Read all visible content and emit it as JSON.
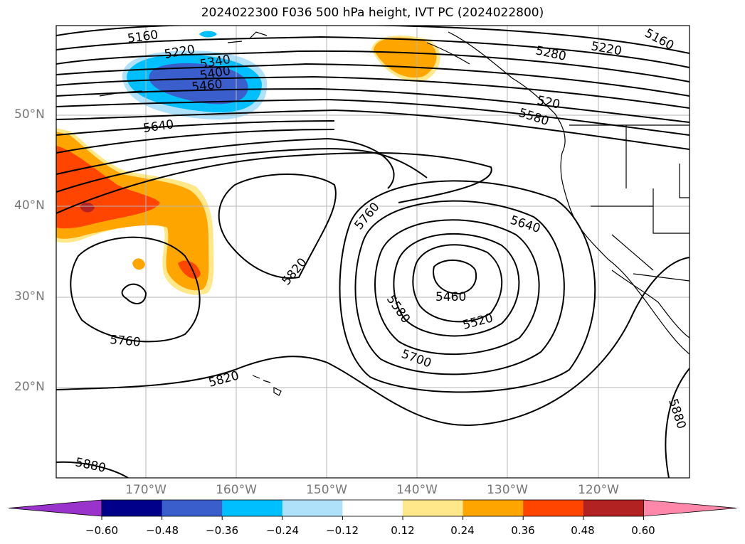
{
  "title": "2024022300 F036 500 hPa height, IVT PC (2024022800)",
  "map": {
    "lat_labels": [
      {
        "id": "lat50",
        "value": 50,
        "text": "50°N"
      },
      {
        "id": "lat40",
        "value": 40,
        "text": "40°N"
      },
      {
        "id": "lat30",
        "value": 30,
        "text": "30°N"
      },
      {
        "id": "lat20",
        "value": 20,
        "text": "20°N"
      }
    ],
    "lon_labels": [
      {
        "id": "lon170",
        "value": -170,
        "text": "170°W"
      },
      {
        "id": "lon160",
        "value": -160,
        "text": "160°W"
      },
      {
        "id": "lon150",
        "value": -150,
        "text": "150°W"
      },
      {
        "id": "lon140",
        "value": -140,
        "text": "140°W"
      },
      {
        "id": "lon130",
        "value": -130,
        "text": "130°W"
      },
      {
        "id": "lon120",
        "value": -120,
        "text": "120°W"
      }
    ],
    "contour_labels": [
      {
        "id": "c1",
        "text": "5160"
      },
      {
        "id": "c2",
        "text": "5220"
      },
      {
        "id": "c3",
        "text": "5340"
      },
      {
        "id": "c4",
        "text": "5400"
      },
      {
        "id": "c5",
        "text": "5460"
      },
      {
        "id": "c6",
        "text": "5640"
      },
      {
        "id": "c7",
        "text": "5280"
      },
      {
        "id": "c8",
        "text": "5220"
      },
      {
        "id": "c9",
        "text": "5160"
      },
      {
        "id": "c10",
        "text": "520"
      },
      {
        "id": "c11",
        "text": "5580"
      },
      {
        "id": "c12",
        "text": "5760"
      },
      {
        "id": "c13",
        "text": "5640"
      },
      {
        "id": "c14",
        "text": "5820"
      },
      {
        "id": "c15",
        "text": "5460"
      },
      {
        "id": "c16",
        "text": "5580"
      },
      {
        "id": "c17",
        "text": "5520"
      },
      {
        "id": "c18",
        "text": "5700"
      },
      {
        "id": "c19",
        "text": "5760"
      },
      {
        "id": "c20",
        "text": "5820"
      },
      {
        "id": "c21",
        "text": "5880"
      },
      {
        "id": "c22",
        "text": "5880"
      }
    ]
  },
  "colorbar": {
    "colors": [
      "#9933cc",
      "#00008b",
      "#3a5fcd",
      "#00bfff",
      "#afe1fa",
      "#ffffff",
      "#ffe88a",
      "#ffa500",
      "#ff4500",
      "#b22222",
      "#ff88aa"
    ],
    "tick_labels": [
      "−0.60",
      "−0.48",
      "−0.36",
      "−0.24",
      "−0.12",
      "0.12",
      "0.24",
      "0.36",
      "0.48",
      "0.60"
    ]
  }
}
